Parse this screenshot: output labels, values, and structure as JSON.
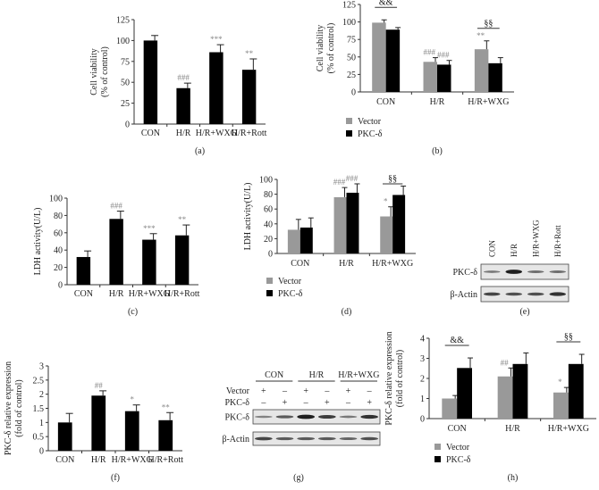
{
  "colors": {
    "vector": "#999999",
    "pkc": "#000000",
    "bar": "#000000",
    "annot": "#888888"
  },
  "legend": {
    "vector": "Vector",
    "pkc": "PKC-δ"
  },
  "chart_data": [
    {
      "id": "a",
      "caption": "(a)",
      "type": "bar",
      "ylabel": [
        "Cell viability",
        "(% of control)"
      ],
      "yticks": [
        0,
        25,
        50,
        75,
        100,
        125
      ],
      "ylim": [
        0,
        125
      ],
      "categories": [
        "CON",
        "H/R",
        "H/R+WXG",
        "H/R+Rott"
      ],
      "values": [
        100,
        43,
        86,
        65
      ],
      "errors": [
        6,
        6,
        9,
        13
      ],
      "annotations": [
        "",
        "###",
        "***",
        "**"
      ]
    },
    {
      "id": "b",
      "caption": "(b)",
      "type": "bar",
      "ylabel": [
        "Cell viability",
        "(% of control)"
      ],
      "yticks": [
        0,
        25,
        50,
        75,
        100,
        125
      ],
      "ylim": [
        0,
        125
      ],
      "categories": [
        "CON",
        "H/R",
        "H/R+WXG"
      ],
      "series": [
        {
          "name": "Vector",
          "values": [
            99,
            43,
            61
          ],
          "errors": [
            4,
            6,
            12
          ],
          "annotations": [
            "",
            "###",
            "**"
          ]
        },
        {
          "name": "PKC-δ",
          "values": [
            89,
            39,
            41
          ],
          "errors": [
            3,
            6,
            8
          ],
          "annotations": [
            "",
            "###",
            ""
          ]
        }
      ],
      "brackets": [
        "&&",
        "",
        "§§"
      ]
    },
    {
      "id": "c",
      "caption": "(c)",
      "type": "bar",
      "ylabel": [
        "LDH activity(U/L)"
      ],
      "yticks": [
        0,
        20,
        40,
        60,
        80,
        100
      ],
      "ylim": [
        0,
        100
      ],
      "categories": [
        "CON",
        "H/R",
        "H/R+WXG",
        "H/R+Rott"
      ],
      "values": [
        32,
        76,
        52,
        57
      ],
      "errors": [
        7,
        9,
        7,
        12
      ],
      "annotations": [
        "",
        "###",
        "***",
        "**"
      ]
    },
    {
      "id": "d",
      "caption": "(d)",
      "type": "bar",
      "ylabel": [
        "LDH activity(U/L)"
      ],
      "yticks": [
        0,
        20,
        40,
        60,
        80,
        100
      ],
      "ylim": [
        0,
        100
      ],
      "categories": [
        "CON",
        "H/R",
        "H/R+WXG"
      ],
      "series": [
        {
          "name": "Vector",
          "values": [
            32,
            76,
            50
          ],
          "errors": [
            14,
            13,
            13
          ],
          "annotations": [
            "",
            "###",
            "*"
          ]
        },
        {
          "name": "PKC-δ",
          "values": [
            35,
            82,
            79
          ],
          "errors": [
            13,
            12,
            12
          ],
          "annotations": [
            "",
            "###",
            ""
          ]
        }
      ],
      "brackets": [
        "",
        "",
        "§§"
      ]
    },
    {
      "id": "f",
      "caption": "(f)",
      "type": "bar",
      "ylabel": [
        "PKC-δ relative expression",
        "(fold of control)"
      ],
      "yticks": [
        0,
        0.5,
        1,
        1.5,
        2,
        2.5,
        3
      ],
      "ylim": [
        0,
        3
      ],
      "categories": [
        "CON",
        "H/R",
        "H/R+WXG",
        "H/R+Rott"
      ],
      "values": [
        1.0,
        1.95,
        1.4,
        1.08
      ],
      "errors": [
        0.32,
        0.17,
        0.22,
        0.27
      ],
      "annotations": [
        "",
        "##",
        "*",
        "**"
      ]
    },
    {
      "id": "h",
      "caption": "(h)",
      "type": "bar",
      "ylabel": [
        "PKC-δ relative expression",
        "(fold of control)"
      ],
      "yticks": [
        0,
        1,
        2,
        3,
        4
      ],
      "ylim": [
        0,
        4
      ],
      "categories": [
        "CON",
        "H/R",
        "H/R+WXG"
      ],
      "series": [
        {
          "name": "Vector",
          "values": [
            1.0,
            2.1,
            1.3
          ],
          "errors": [
            0.15,
            0.42,
            0.25
          ],
          "annotations": [
            "",
            "##",
            "*"
          ]
        },
        {
          "name": "PKC-δ",
          "values": [
            2.52,
            2.72,
            2.72
          ],
          "errors": [
            0.5,
            0.55,
            0.48
          ],
          "annotations": [
            "",
            "",
            ""
          ]
        }
      ],
      "brackets": [
        "&&",
        "",
        "§§"
      ]
    }
  ],
  "blot_e": {
    "caption": "(e)",
    "lanes": [
      "CON",
      "H/R",
      "H/R+WXG",
      "H/R+Rott"
    ],
    "rows": [
      "PKC-δ",
      "β-Actin"
    ],
    "intensity": [
      [
        0.55,
        1.0,
        0.6,
        0.6
      ],
      [
        0.8,
        0.75,
        0.75,
        0.9
      ]
    ]
  },
  "blot_g": {
    "caption": "(g)",
    "groups": [
      "CON",
      "H/R",
      "H/R+WXG"
    ],
    "treat_rows": [
      {
        "label": "Vector",
        "marks": [
          "+",
          "–",
          "+",
          "–",
          "+",
          "–"
        ]
      },
      {
        "label": "PKC-δ",
        "marks": [
          "–",
          "+",
          "–",
          "+",
          "–",
          "+"
        ]
      }
    ],
    "rows": [
      "PKC-δ",
      "β-Actin"
    ],
    "intensity": [
      [
        0.5,
        0.7,
        1.0,
        0.85,
        0.55,
        0.9
      ],
      [
        0.8,
        0.7,
        0.7,
        0.7,
        0.65,
        0.75
      ]
    ]
  }
}
